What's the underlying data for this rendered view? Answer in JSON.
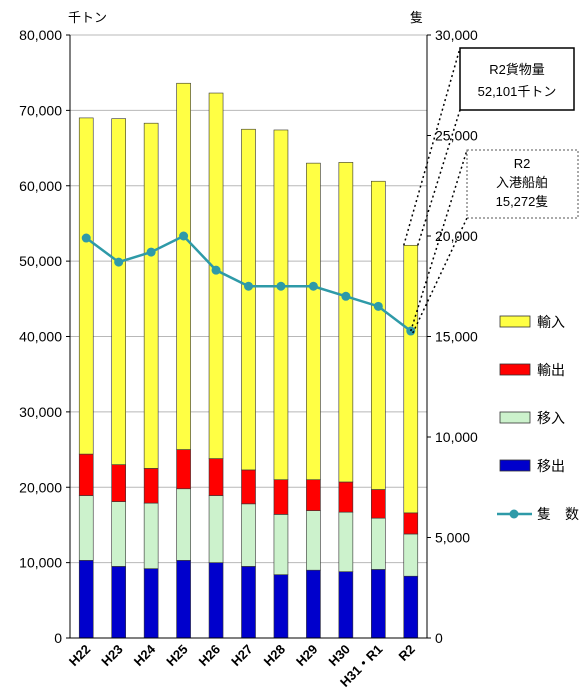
{
  "chart_data": {
    "type": "bar",
    "stacked": true,
    "categories": [
      "H22",
      "H23",
      "H24",
      "H25",
      "H26",
      "H27",
      "H28",
      "H29",
      "H30",
      "H31・R1",
      "R2"
    ],
    "left_unit": "千トン",
    "right_unit": "隻",
    "ylim_left": [
      0,
      80000
    ],
    "ylim_right": [
      0,
      30000
    ],
    "yticks_left": [
      "0",
      "10,000",
      "20,000",
      "30,000",
      "40,000",
      "50,000",
      "60,000",
      "70,000",
      "80,000"
    ],
    "yticks_right": [
      "0",
      "5,000",
      "10,000",
      "15,000",
      "20,000",
      "25,000",
      "30,000"
    ],
    "series": [
      {
        "name": "移出",
        "color": "#0000cc",
        "values": [
          10300,
          9500,
          9200,
          10300,
          10000,
          9500,
          8400,
          9000,
          8800,
          9100,
          8200
        ]
      },
      {
        "name": "移入",
        "color": "#ccf2cc",
        "values": [
          8600,
          8600,
          8700,
          9500,
          8900,
          8300,
          8000,
          7900,
          7900,
          6800,
          5600
        ]
      },
      {
        "name": "輸出",
        "color": "#ff0000",
        "values": [
          5500,
          4900,
          4600,
          5200,
          4900,
          4500,
          4600,
          4100,
          4000,
          3800,
          2800
        ]
      },
      {
        "name": "輸入",
        "color": "#ffff44",
        "values": [
          44600,
          45900,
          45800,
          48600,
          48500,
          45200,
          46400,
          42000,
          42400,
          40900,
          35501
        ]
      }
    ],
    "line_series": {
      "name": "隻　数",
      "color": "#2e9aa8",
      "axis": "right",
      "values": [
        19900,
        18700,
        19200,
        20000,
        18300,
        17500,
        17500,
        17500,
        17000,
        16500,
        15272
      ]
    },
    "legend": {
      "position": "right",
      "order": [
        "輸入",
        "輸出",
        "移入",
        "移出",
        "隻　数"
      ]
    },
    "annotations": [
      {
        "lines": [
          "R2貨物量",
          "52,101千トン"
        ],
        "border": "solid"
      },
      {
        "lines": [
          "R2",
          "入港船舶",
          "15,272隻"
        ],
        "border": "dotted"
      }
    ]
  }
}
